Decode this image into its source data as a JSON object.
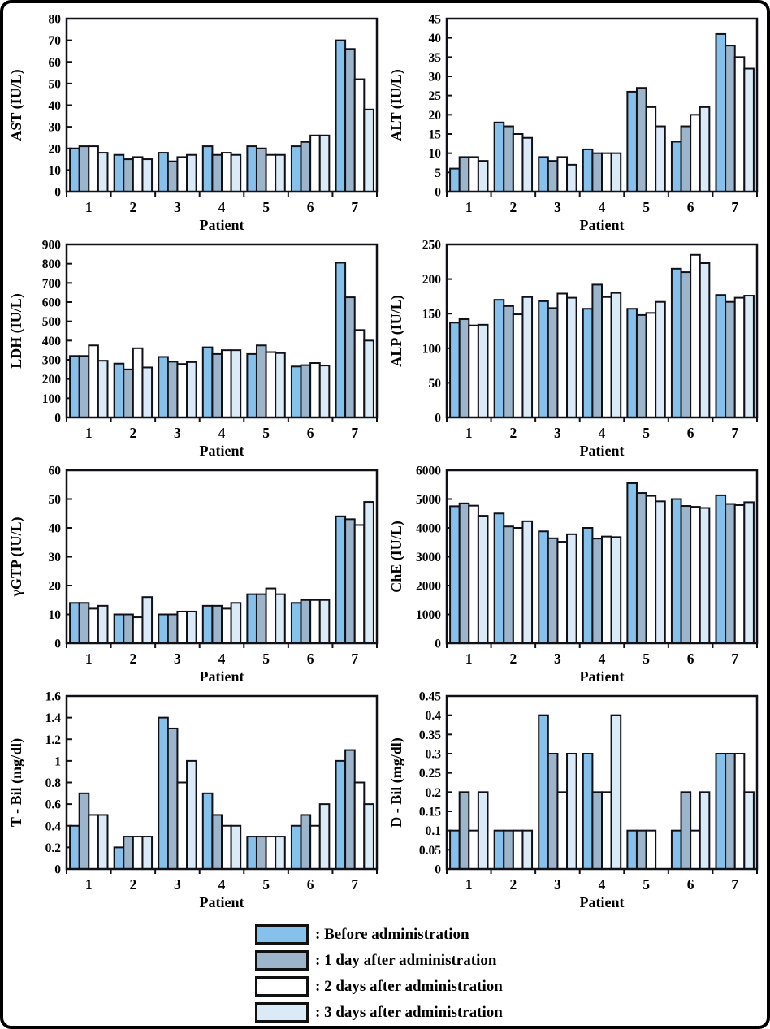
{
  "figure": {
    "xlabel": "Patient",
    "patients": [
      "1",
      "2",
      "3",
      "4",
      "5",
      "6",
      "7"
    ]
  },
  "legend": {
    "items": [
      {
        "label": ": Before administration",
        "color": "#85C1EB"
      },
      {
        "label": ": 1 day after administration",
        "color": "#9CB5CA"
      },
      {
        "label": ": 2 days after administration",
        "color": "#FFFFFF"
      },
      {
        "label": ": 3 days after administration",
        "color": "#DAEAF6"
      }
    ]
  },
  "colors": {
    "bar_outline": "#101018",
    "axis": "#101018",
    "text": "#000000",
    "background": "#FFFFFF"
  },
  "chart_data": [
    {
      "type": "bar",
      "id": "ast",
      "ylabel": "AST (IU/L)",
      "xlabel": "Patient",
      "ylim": [
        0,
        80
      ],
      "ystep": 10,
      "categories": [
        "1",
        "2",
        "3",
        "4",
        "5",
        "6",
        "7"
      ],
      "series": [
        {
          "name": "Before administration",
          "values": [
            20,
            17,
            18,
            21,
            21,
            21,
            70
          ]
        },
        {
          "name": "1 day after administration",
          "values": [
            21,
            15,
            14,
            17,
            20,
            23,
            66
          ]
        },
        {
          "name": "2 days after administration",
          "values": [
            21,
            16,
            16,
            18,
            17,
            26,
            52
          ]
        },
        {
          "name": "3 days after administration",
          "values": [
            18,
            15,
            17,
            17,
            17,
            26,
            38
          ]
        }
      ]
    },
    {
      "type": "bar",
      "id": "alt",
      "ylabel": "ALT (IU/L)",
      "xlabel": "Patient",
      "ylim": [
        0,
        45
      ],
      "ystep": 5,
      "categories": [
        "1",
        "2",
        "3",
        "4",
        "5",
        "6",
        "7"
      ],
      "series": [
        {
          "name": "Before administration",
          "values": [
            6,
            18,
            9,
            11,
            26,
            13,
            41
          ]
        },
        {
          "name": "1 day after administration",
          "values": [
            9,
            17,
            8,
            10,
            27,
            17,
            38
          ]
        },
        {
          "name": "2 days after administration",
          "values": [
            9,
            15,
            9,
            10,
            22,
            20,
            35
          ]
        },
        {
          "name": "3 days after administration",
          "values": [
            8,
            14,
            7,
            10,
            17,
            22,
            32
          ]
        }
      ]
    },
    {
      "type": "bar",
      "id": "ldh",
      "ylabel": "LDH (IU/L)",
      "xlabel": "Patient",
      "ylim": [
        0,
        900
      ],
      "ystep": 100,
      "categories": [
        "1",
        "2",
        "3",
        "4",
        "5",
        "6",
        "7"
      ],
      "series": [
        {
          "name": "Before administration",
          "values": [
            320,
            280,
            315,
            365,
            330,
            265,
            805
          ]
        },
        {
          "name": "1 day after administration",
          "values": [
            320,
            250,
            290,
            330,
            375,
            272,
            625
          ]
        },
        {
          "name": "2 days after administration",
          "values": [
            375,
            360,
            278,
            350,
            340,
            283,
            455
          ]
        },
        {
          "name": "3 days after administration",
          "values": [
            295,
            260,
            288,
            350,
            335,
            270,
            400
          ]
        }
      ]
    },
    {
      "type": "bar",
      "id": "alp",
      "ylabel": "ALP (IU/L)",
      "xlabel": "Patient",
      "ylim": [
        0,
        250
      ],
      "ystep": 50,
      "categories": [
        "1",
        "2",
        "3",
        "4",
        "5",
        "6",
        "7"
      ],
      "series": [
        {
          "name": "Before administration",
          "values": [
            137,
            170,
            168,
            157,
            157,
            215,
            177
          ]
        },
        {
          "name": "1 day after administration",
          "values": [
            142,
            161,
            158,
            192,
            148,
            210,
            167
          ]
        },
        {
          "name": "2 days after administration",
          "values": [
            133,
            149,
            179,
            174,
            151,
            235,
            173
          ]
        },
        {
          "name": "3 days after administration",
          "values": [
            134,
            174,
            173,
            180,
            167,
            223,
            176
          ]
        }
      ]
    },
    {
      "type": "bar",
      "id": "ggtp",
      "ylabel": "γGTP (IU/L)",
      "xlabel": "Patient",
      "ylim": [
        0,
        60
      ],
      "ystep": 10,
      "categories": [
        "1",
        "2",
        "3",
        "4",
        "5",
        "6",
        "7"
      ],
      "series": [
        {
          "name": "Before administration",
          "values": [
            14,
            10,
            10,
            13,
            17,
            14,
            44
          ]
        },
        {
          "name": "1 day after administration",
          "values": [
            14,
            10,
            10,
            13,
            17,
            15,
            43
          ]
        },
        {
          "name": "2 days after administration",
          "values": [
            12,
            9,
            11,
            12,
            19,
            15,
            41
          ]
        },
        {
          "name": "3 days after administration",
          "values": [
            13,
            16,
            11,
            14,
            17,
            15,
            49
          ]
        }
      ]
    },
    {
      "type": "bar",
      "id": "che",
      "ylabel": "ChE (IU/L)",
      "xlabel": "Patient",
      "ylim": [
        0,
        6000
      ],
      "ystep": 1000,
      "categories": [
        "1",
        "2",
        "3",
        "4",
        "5",
        "6",
        "7"
      ],
      "series": [
        {
          "name": "Before administration",
          "values": [
            4750,
            4500,
            3880,
            4000,
            5550,
            5000,
            5130
          ]
        },
        {
          "name": "1 day after administration",
          "values": [
            4850,
            4050,
            3640,
            3630,
            5210,
            4760,
            4830
          ]
        },
        {
          "name": "2 days after administration",
          "values": [
            4770,
            4000,
            3520,
            3700,
            5110,
            4730,
            4790
          ]
        },
        {
          "name": "3 days after administration",
          "values": [
            4420,
            4230,
            3780,
            3680,
            4920,
            4690,
            4890
          ]
        }
      ]
    },
    {
      "type": "bar",
      "id": "tbil",
      "ylabel": "T - Bil (mg/dl)",
      "xlabel": "Patient",
      "ylim": [
        0,
        1.6
      ],
      "ystep": 0.2,
      "categories": [
        "1",
        "2",
        "3",
        "4",
        "5",
        "6",
        "7"
      ],
      "series": [
        {
          "name": "Before administration",
          "values": [
            0.4,
            0.2,
            1.4,
            0.7,
            0.3,
            0.4,
            1.0
          ]
        },
        {
          "name": "1 day after administration",
          "values": [
            0.7,
            0.3,
            1.3,
            0.5,
            0.3,
            0.5,
            1.1
          ]
        },
        {
          "name": "2 days after administration",
          "values": [
            0.5,
            0.3,
            0.8,
            0.4,
            0.3,
            0.4,
            0.8
          ]
        },
        {
          "name": "3 days after administration",
          "values": [
            0.5,
            0.3,
            1.0,
            0.4,
            0.3,
            0.6,
            0.6
          ]
        }
      ]
    },
    {
      "type": "bar",
      "id": "dbil",
      "ylabel": "D - Bil (mg/dl)",
      "xlabel": "Patient",
      "ylim": [
        0,
        0.45
      ],
      "ystep": 0.05,
      "categories": [
        "1",
        "2",
        "3",
        "4",
        "5",
        "6",
        "7"
      ],
      "series": [
        {
          "name": "Before administration",
          "values": [
            0.1,
            0.1,
            0.4,
            0.3,
            0.1,
            0.1,
            0.3
          ]
        },
        {
          "name": "1 day after administration",
          "values": [
            0.2,
            0.1,
            0.3,
            0.2,
            0.1,
            0.2,
            0.3
          ]
        },
        {
          "name": "2 days after administration",
          "values": [
            0.1,
            0.1,
            0.2,
            0.2,
            0.1,
            0.1,
            0.3
          ]
        },
        {
          "name": "3 days after administration",
          "values": [
            0.2,
            0.1,
            0.3,
            0.4,
            0,
            0.2,
            0.2
          ]
        }
      ]
    }
  ]
}
